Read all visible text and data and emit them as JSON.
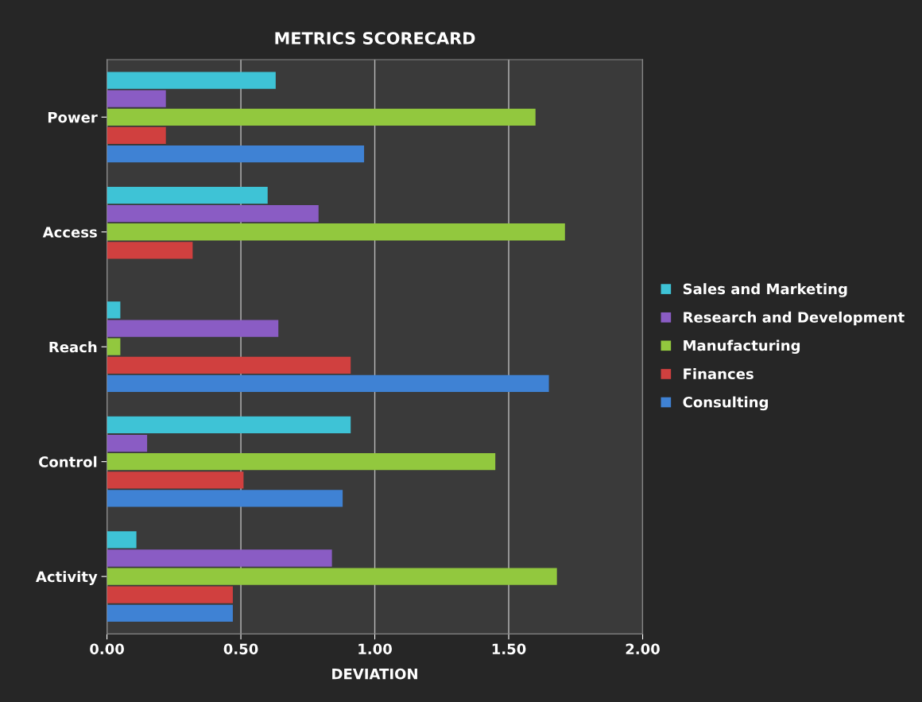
{
  "chart_data": {
    "type": "bar",
    "orientation": "horizontal",
    "title": "METRICS SCORECARD",
    "xlabel": "DEVIATION",
    "categories": [
      "Power",
      "Access",
      "Reach",
      "Control",
      "Activity"
    ],
    "series": [
      {
        "name": "Consulting",
        "color": "#3f82d4",
        "values": [
          0.96,
          null,
          1.65,
          0.88,
          0.47
        ]
      },
      {
        "name": "Finances",
        "color": "#d0403f",
        "values": [
          0.22,
          0.32,
          0.91,
          0.51,
          0.47
        ]
      },
      {
        "name": "Manufacturing",
        "color": "#92c83e",
        "values": [
          1.6,
          1.71,
          0.05,
          1.45,
          1.68
        ]
      },
      {
        "name": "Research and Development",
        "color": "#8a5cc4",
        "values": [
          0.22,
          0.79,
          0.64,
          0.15,
          0.84
        ]
      },
      {
        "name": "Sales and Marketing",
        "color": "#3ec3d6",
        "values": [
          0.63,
          0.6,
          0.05,
          0.91,
          0.11
        ]
      }
    ],
    "xlim": [
      0,
      2
    ],
    "xticks": [
      {
        "value": 0,
        "label": "0.00"
      },
      {
        "value": 0.5,
        "label": "0.50"
      },
      {
        "value": 1,
        "label": "1.00"
      },
      {
        "value": 1.5,
        "label": "1.50"
      },
      {
        "value": 2,
        "label": "2.00"
      }
    ],
    "grid": "x",
    "legend": "right"
  }
}
